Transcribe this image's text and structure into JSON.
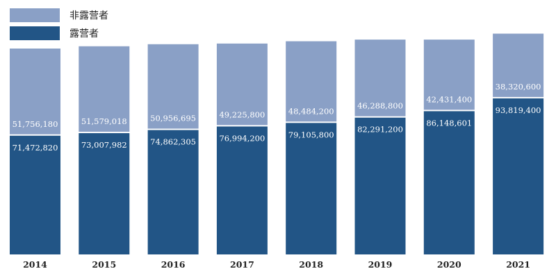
{
  "colors": {
    "non_camper": "#8aa0c6",
    "camper": "#225586"
  },
  "legend": {
    "non_camper": "非露营者",
    "camper": "露营者"
  },
  "chart_data": {
    "type": "bar",
    "stacked": true,
    "categories": [
      "2014",
      "2015",
      "2016",
      "2017",
      "2018",
      "2019",
      "2020",
      "2021"
    ],
    "series": [
      {
        "name": "露营者",
        "values": [
          71472820,
          73007982,
          74862305,
          76994200,
          79105800,
          82291200,
          86148601,
          93819400
        ],
        "labels": [
          "71,472,820",
          "73,007,982",
          "74,862,305",
          "76,994,200",
          "79,105,800",
          "82,291,200",
          "86,148,601",
          "93,819,400"
        ]
      },
      {
        "name": "非露营者",
        "values": [
          51756180,
          51579018,
          50956695,
          49225800,
          48484200,
          46288800,
          42431400,
          38320600
        ],
        "labels": [
          "51,756,180",
          "51,579,018",
          "50,956,695",
          "49,225,800",
          "48,484,200",
          "46,288,800",
          "42,431,400",
          "38,320,600"
        ]
      }
    ],
    "legend_position": "top-left",
    "grid": false
  }
}
